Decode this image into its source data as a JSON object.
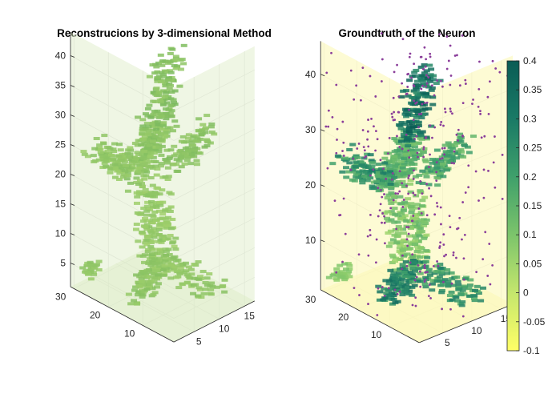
{
  "chart_data": [
    {
      "type": "scatter3d",
      "title": "Reconstrucions by 3-dimensional Method",
      "render": "volumetric voxel cloud (neuron-shaped)",
      "axes": {
        "x": {
          "ticks": [
            5,
            10,
            15
          ],
          "range": [
            1,
            17
          ]
        },
        "y": {
          "ticks": [
            10,
            20,
            30
          ],
          "range": [
            1,
            31
          ]
        },
        "z": {
          "ticks": [
            5,
            10,
            15,
            20,
            25,
            30,
            35,
            40
          ],
          "range": [
            1,
            44
          ]
        }
      },
      "grid": true,
      "value_range": [
        0.05,
        0.15
      ]
    },
    {
      "type": "scatter3d",
      "title": "Groundtruth of the Neuron",
      "render": "volumetric voxel cloud with purple sample points",
      "axes": {
        "x": {
          "ticks": [
            5,
            10,
            15
          ],
          "range": [
            1,
            17
          ]
        },
        "y": {
          "ticks": [
            10,
            20,
            30
          ],
          "range": [
            1,
            31
          ]
        },
        "z": {
          "ticks": [
            10,
            20,
            30,
            40
          ],
          "range": [
            1,
            46
          ]
        }
      },
      "grid": true,
      "value_range": [
        -0.1,
        0.4
      ],
      "colorbar": {
        "ticks": [
          "0.4",
          "0.35",
          "0.3",
          "0.25",
          "0.2",
          "0.15",
          "0.1",
          "0.05",
          "0",
          "-0.05",
          "-0.1"
        ],
        "colors": [
          "#ffff66",
          "#c4e66d",
          "#7cc46b",
          "#3fa06b",
          "#1a7a66",
          "#0a5c55"
        ]
      }
    }
  ]
}
